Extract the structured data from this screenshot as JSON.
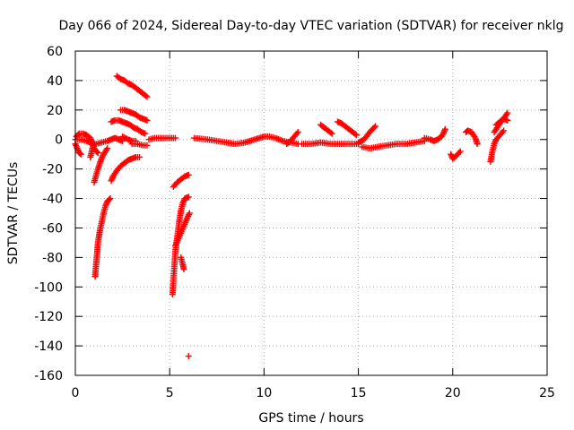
{
  "chart_data": {
    "type": "scatter",
    "title": "Day 066 of 2024, Sidereal Day-to-day VTEC variation (SDTVAR) for receiver nklg",
    "xlabel": "GPS time / hours",
    "ylabel": "SDTVAR / TECUs",
    "xlim": [
      0,
      25
    ],
    "ylim": [
      -160,
      60
    ],
    "xticks": [
      0,
      5,
      10,
      15,
      20,
      25
    ],
    "yticks": [
      60,
      40,
      20,
      0,
      -20,
      -40,
      -60,
      -80,
      -100,
      -120,
      -140,
      -160
    ],
    "grid": true,
    "marker": "+",
    "color": "#ff0000",
    "series": [
      {
        "name": "SDTVAR",
        "segments": [
          [
            [
              0.0,
              -3
            ],
            [
              0.1,
              -6
            ],
            [
              0.2,
              -9
            ],
            [
              0.3,
              -10
            ]
          ],
          [
            [
              0.05,
              2
            ],
            [
              0.2,
              4
            ],
            [
              0.4,
              4
            ],
            [
              0.6,
              3
            ],
            [
              0.8,
              1
            ],
            [
              0.9,
              -3
            ],
            [
              1.0,
              -6
            ],
            [
              1.1,
              -8
            ],
            [
              1.2,
              -9
            ]
          ],
          [
            [
              0.0,
              0
            ],
            [
              0.3,
              0
            ],
            [
              0.6,
              -1
            ],
            [
              0.8,
              -2
            ],
            [
              1.1,
              -3
            ],
            [
              1.4,
              -2
            ],
            [
              1.7,
              -1
            ],
            [
              1.9,
              0
            ],
            [
              2.1,
              1
            ],
            [
              2.3,
              0
            ],
            [
              2.5,
              -1
            ]
          ],
          [
            [
              0.8,
              -12
            ],
            [
              0.9,
              -6
            ],
            [
              1.0,
              -3
            ]
          ],
          [
            [
              1.0,
              -29
            ],
            [
              1.15,
              -22
            ],
            [
              1.3,
              -16
            ],
            [
              1.45,
              -11
            ],
            [
              1.6,
              -8
            ],
            [
              1.7,
              -6
            ]
          ],
          [
            [
              1.05,
              -93
            ],
            [
              1.1,
              -85
            ],
            [
              1.15,
              -78
            ],
            [
              1.2,
              -70
            ],
            [
              1.3,
              -62
            ],
            [
              1.4,
              -56
            ],
            [
              1.5,
              -50
            ],
            [
              1.6,
              -45
            ],
            [
              1.7,
              -42
            ],
            [
              1.85,
              -40
            ]
          ],
          [
            [
              1.9,
              -28
            ],
            [
              2.0,
              -25
            ],
            [
              2.2,
              -21
            ],
            [
              2.4,
              -18
            ],
            [
              2.6,
              -16
            ],
            [
              2.8,
              -14
            ],
            [
              3.0,
              -13
            ],
            [
              3.2,
              -12
            ],
            [
              3.4,
              -12
            ]
          ],
          [
            [
              2.2,
              43
            ],
            [
              2.4,
              41
            ],
            [
              2.6,
              40
            ],
            [
              2.8,
              38
            ],
            [
              3.0,
              37
            ],
            [
              3.2,
              35
            ],
            [
              3.4,
              33
            ],
            [
              3.6,
              31
            ],
            [
              3.8,
              29
            ]
          ],
          [
            [
              2.4,
              20
            ],
            [
              2.6,
              20
            ],
            [
              2.8,
              19
            ],
            [
              3.0,
              18
            ],
            [
              3.2,
              17
            ],
            [
              3.4,
              15
            ],
            [
              3.6,
              14
            ],
            [
              3.8,
              13
            ]
          ],
          [
            [
              1.9,
              12
            ],
            [
              2.1,
              13
            ],
            [
              2.3,
              13
            ],
            [
              2.5,
              12
            ],
            [
              2.7,
              11
            ],
            [
              2.9,
              10
            ],
            [
              3.1,
              8
            ],
            [
              3.3,
              7
            ],
            [
              3.5,
              5
            ],
            [
              3.7,
              4
            ]
          ],
          [
            [
              3.0,
              -3
            ],
            [
              3.3,
              -3
            ],
            [
              3.6,
              -4
            ],
            [
              3.8,
              -4
            ]
          ],
          [
            [
              2.5,
              2
            ],
            [
              2.8,
              0
            ],
            [
              3.0,
              -1
            ],
            [
              3.2,
              -1
            ]
          ],
          [
            [
              3.9,
              0
            ],
            [
              4.2,
              1
            ],
            [
              4.5,
              1
            ],
            [
              4.8,
              1
            ],
            [
              5.1,
              1
            ],
            [
              5.3,
              1
            ]
          ],
          [
            [
              5.2,
              -32
            ],
            [
              5.4,
              -29
            ],
            [
              5.6,
              -27
            ],
            [
              5.8,
              -25
            ],
            [
              6.0,
              -24
            ]
          ],
          [
            [
              5.15,
              -105
            ],
            [
              5.2,
              -95
            ],
            [
              5.25,
              -86
            ],
            [
              5.3,
              -76
            ],
            [
              5.4,
              -66
            ],
            [
              5.5,
              -56
            ],
            [
              5.6,
              -48
            ],
            [
              5.7,
              -43
            ],
            [
              5.8,
              -40
            ],
            [
              6.0,
              -39
            ]
          ],
          [
            [
              5.3,
              -72
            ],
            [
              5.5,
              -66
            ],
            [
              5.7,
              -60
            ],
            [
              5.9,
              -54
            ],
            [
              6.05,
              -50
            ]
          ],
          [
            [
              5.6,
              -80
            ],
            [
              5.7,
              -85
            ],
            [
              5.75,
              -88
            ]
          ],
          [
            [
              6.0,
              -147
            ]
          ],
          [
            [
              6.3,
              1
            ],
            [
              7.0,
              0
            ],
            [
              7.5,
              -1
            ],
            [
              8.0,
              -2
            ],
            [
              8.5,
              -3
            ],
            [
              9.0,
              -2
            ],
            [
              9.5,
              0
            ],
            [
              10.0,
              2
            ],
            [
              10.3,
              2
            ],
            [
              10.6,
              1
            ],
            [
              11.0,
              -1
            ],
            [
              11.4,
              -2
            ],
            [
              11.8,
              -3
            ]
          ],
          [
            [
              11.2,
              -3
            ],
            [
              11.4,
              -1
            ],
            [
              11.6,
              2
            ],
            [
              11.8,
              5
            ]
          ],
          [
            [
              12.0,
              -3
            ],
            [
              12.5,
              -3
            ],
            [
              13.0,
              -2
            ],
            [
              13.5,
              -3
            ],
            [
              14.0,
              -3
            ],
            [
              14.5,
              -3
            ],
            [
              15.0,
              -3
            ]
          ],
          [
            [
              13.0,
              10
            ],
            [
              13.2,
              8
            ],
            [
              13.4,
              6
            ],
            [
              13.6,
              4
            ]
          ],
          [
            [
              13.9,
              12
            ],
            [
              14.1,
              11
            ],
            [
              14.3,
              9
            ],
            [
              14.5,
              7
            ],
            [
              14.7,
              5
            ],
            [
              14.9,
              3
            ]
          ],
          [
            [
              15.0,
              -2
            ],
            [
              15.3,
              0
            ],
            [
              15.6,
              5
            ],
            [
              15.9,
              9
            ]
          ],
          [
            [
              15.2,
              -5
            ],
            [
              15.6,
              -6
            ],
            [
              16.0,
              -5
            ],
            [
              16.5,
              -4
            ],
            [
              17.0,
              -3
            ],
            [
              17.5,
              -3
            ],
            [
              18.0,
              -2
            ],
            [
              18.5,
              -1
            ]
          ],
          [
            [
              18.5,
              1
            ],
            [
              18.8,
              0
            ],
            [
              19.0,
              -1
            ],
            [
              19.2,
              0
            ],
            [
              19.4,
              2
            ],
            [
              19.5,
              4
            ],
            [
              19.6,
              7
            ]
          ],
          [
            [
              19.9,
              -10
            ],
            [
              20.0,
              -13
            ],
            [
              20.2,
              -11
            ],
            [
              20.4,
              -8
            ]
          ],
          [
            [
              20.7,
              5
            ],
            [
              20.8,
              6
            ],
            [
              21.0,
              5
            ],
            [
              21.2,
              1
            ],
            [
              21.3,
              -3
            ]
          ],
          [
            [
              22.0,
              -15
            ],
            [
              22.1,
              -8
            ],
            [
              22.2,
              -3
            ],
            [
              22.3,
              0
            ],
            [
              22.5,
              3
            ],
            [
              22.7,
              6
            ]
          ],
          [
            [
              22.2,
              5
            ],
            [
              22.4,
              9
            ],
            [
              22.6,
              13
            ],
            [
              22.8,
              16
            ],
            [
              22.9,
              18
            ]
          ],
          [
            [
              22.3,
              10
            ],
            [
              22.5,
              12
            ],
            [
              22.7,
              14
            ],
            [
              22.9,
              13
            ]
          ]
        ]
      }
    ]
  }
}
